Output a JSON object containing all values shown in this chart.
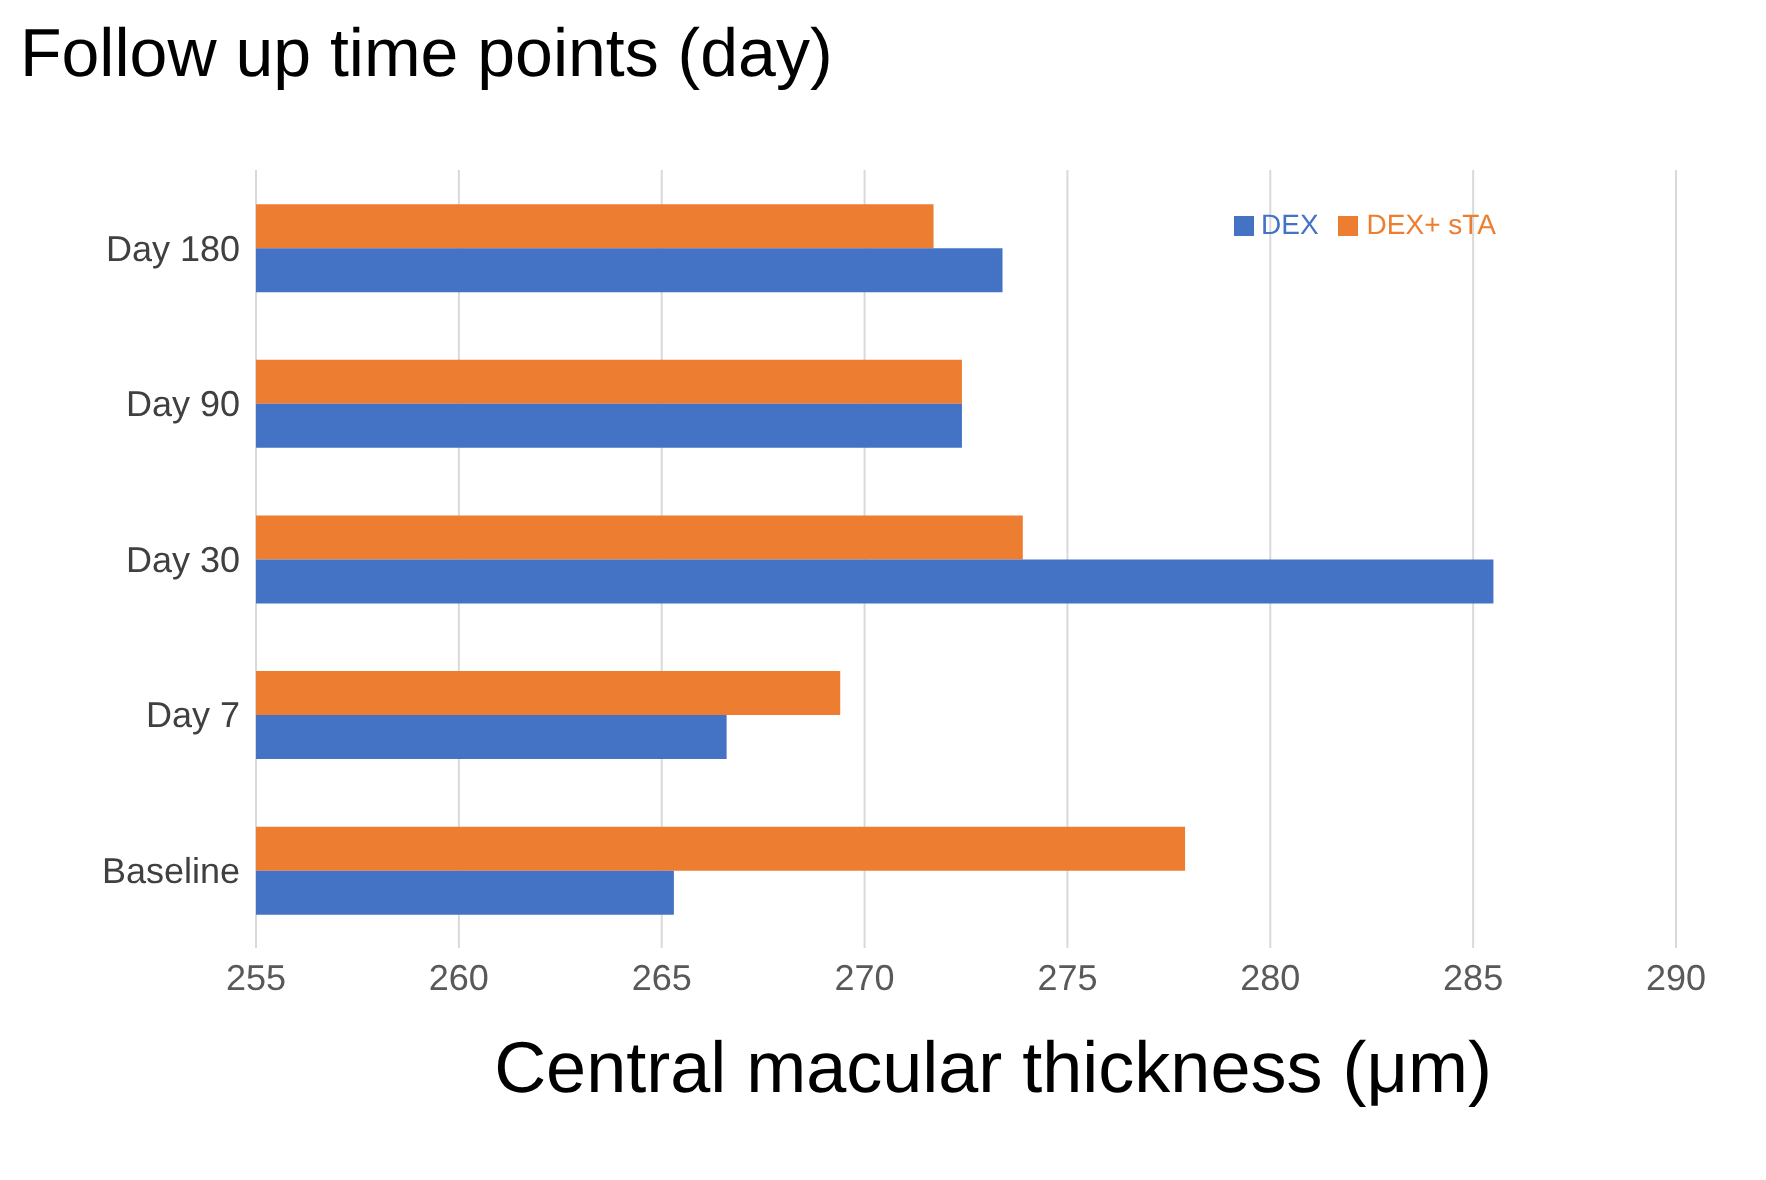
{
  "chart_data": {
    "type": "bar",
    "orientation": "horizontal",
    "title": "Follow up time points (day)",
    "xlabel": "Central macular thickness (μm)",
    "categories": [
      "Day 180",
      "Day 90",
      "Day 30",
      "Day 7",
      "Baseline"
    ],
    "series": [
      {
        "name": "DEX+ sTA",
        "color": "#ed7d31",
        "values": [
          271.7,
          272.4,
          273.9,
          269.4,
          277.9
        ]
      },
      {
        "name": "DEX",
        "color": "#4472c4",
        "values": [
          273.4,
          272.4,
          285.5,
          266.6,
          265.3
        ]
      }
    ],
    "xlim": [
      255,
      290
    ],
    "xticks": [
      255,
      260,
      265,
      270,
      275,
      280,
      285,
      290
    ],
    "grid": "x",
    "legend": "top right"
  }
}
